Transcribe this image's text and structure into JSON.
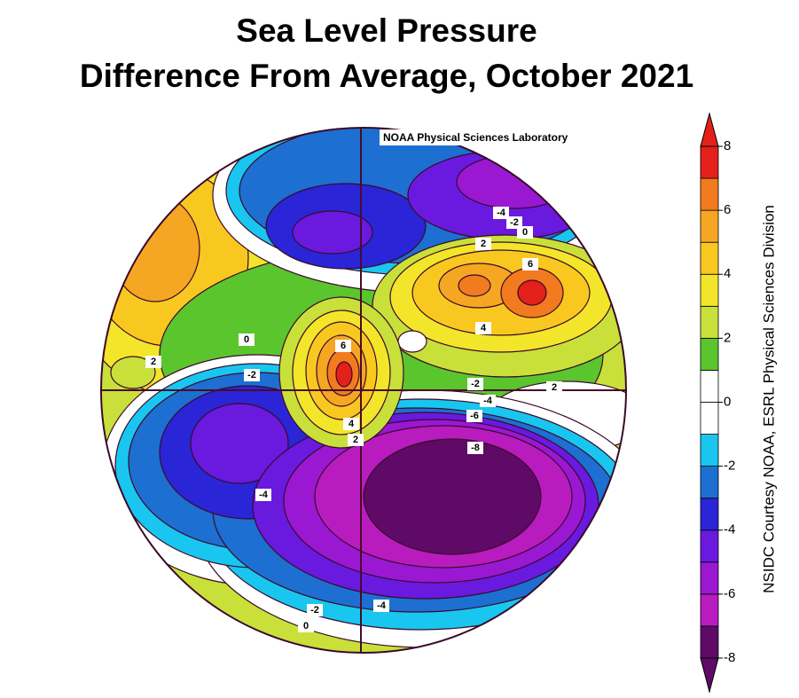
{
  "title": [
    "Sea Level Pressure",
    "Difference From Average, October 2021"
  ],
  "credit": "NOAA Physical Sciences Laboratory",
  "side_text": "NSIDC Courtesy NOAA, ESRL Physical Sciences Division",
  "colorbar": {
    "lim": [
      -8,
      8
    ],
    "ticks": [
      8,
      6,
      4,
      2,
      0,
      -2,
      -4,
      -6,
      -8
    ],
    "colors": [
      "#5e0a66",
      "#b81cbf",
      "#9a18d2",
      "#6a19df",
      "#2a25d6",
      "#1d6fd1",
      "#19c6ef",
      "#ffffff",
      "#ffffff",
      "#5bc52e",
      "#c9e03a",
      "#f3e52a",
      "#f8c820",
      "#f5a623",
      "#f27a1f",
      "#e4201a"
    ],
    "under_color": "#5e0a66",
    "over_color": "#e4201a"
  },
  "contour_labels": [
    -4,
    -2,
    0,
    2,
    6,
    4,
    2,
    0,
    2,
    -2,
    6,
    4,
    2,
    -2,
    -4,
    -6,
    -8,
    -4,
    -2,
    0,
    -4
  ]
}
